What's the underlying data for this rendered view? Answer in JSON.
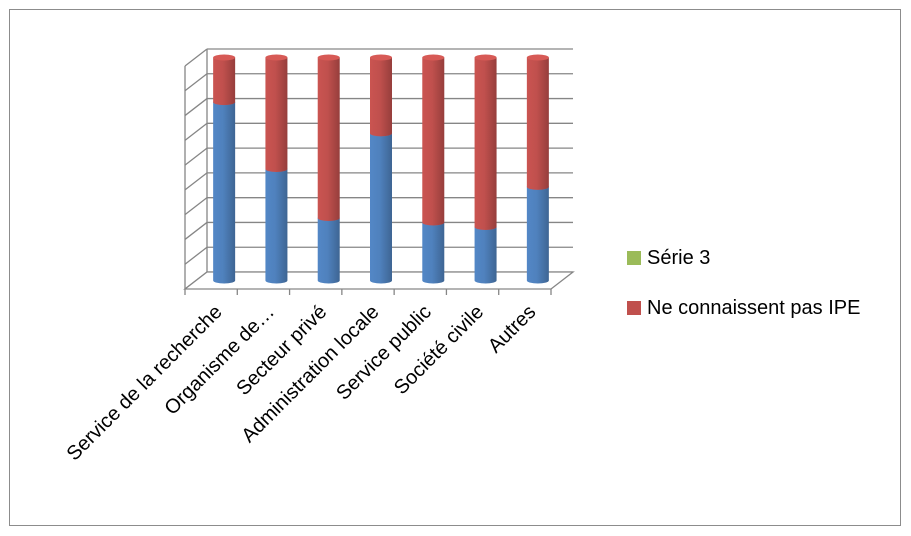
{
  "chart_data": {
    "type": "bar",
    "stacked": true,
    "three_d": true,
    "categories": [
      "Service de la recherche",
      "Organisme de…",
      "Secteur privé",
      "Administration locale",
      "Service public",
      "Société civile",
      "Autres"
    ],
    "series": [
      {
        "color": "#4f81bd",
        "values": [
          0.8,
          0.5,
          0.28,
          0.66,
          0.26,
          0.24,
          0.42
        ]
      },
      {
        "name": "Ne connaissent pas IPE",
        "color": "#c0504d",
        "values": [
          0.2,
          0.5,
          0.72,
          0.34,
          0.74,
          0.76,
          0.58
        ]
      },
      {
        "name": "Série 3",
        "color": "#9bbb59",
        "values": [
          0,
          0,
          0,
          0,
          0,
          0,
          0
        ]
      }
    ],
    "ylim": [
      0,
      1
    ],
    "y_gridlines": 9,
    "grid": true,
    "legend_position": "right",
    "legend": [
      {
        "label": "Série 3",
        "color": "#9bbb59"
      },
      {
        "label": "Ne connaissent pas IPE",
        "color": "#c0504d"
      }
    ]
  }
}
